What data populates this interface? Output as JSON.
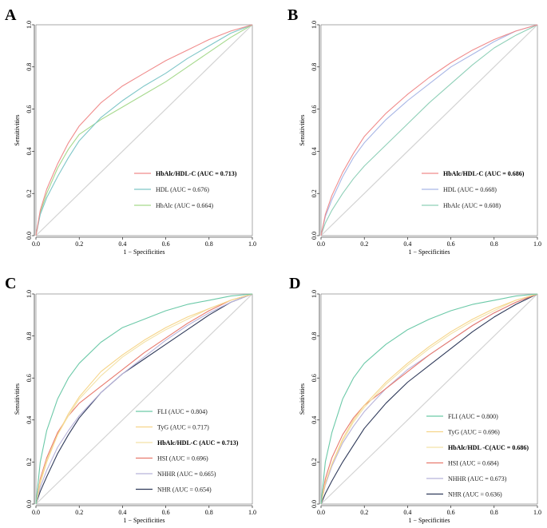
{
  "figure": {
    "type": "roc_panels"
  },
  "chart_data": [
    {
      "panel": "A",
      "type": "line",
      "xlabel": "1 − Specificities",
      "ylabel": "Sensitivities",
      "xlim": [
        0.0,
        1.0
      ],
      "ylim": [
        0.0,
        1.0
      ],
      "ticks": [
        "0.0",
        "0.2",
        "0.4",
        "0.6",
        "0.8",
        "1.0"
      ],
      "legend_position": "bottom-right",
      "series": [
        {
          "name": "HbAlc/HDL-C (AUC = 0.713)",
          "color": "#f08c8c",
          "bold": true,
          "x": [
            0,
            0.02,
            0.05,
            0.1,
            0.15,
            0.2,
            0.3,
            0.4,
            0.5,
            0.6,
            0.7,
            0.8,
            0.9,
            1.0
          ],
          "y": [
            0,
            0.12,
            0.22,
            0.34,
            0.44,
            0.52,
            0.63,
            0.71,
            0.77,
            0.83,
            0.88,
            0.93,
            0.97,
            1.0
          ]
        },
        {
          "name": "HDL (AUC = 0.676)",
          "color": "#7fc6c8",
          "bold": false,
          "x": [
            0,
            0.02,
            0.05,
            0.1,
            0.15,
            0.2,
            0.3,
            0.4,
            0.5,
            0.6,
            0.7,
            0.8,
            0.9,
            1.0
          ],
          "y": [
            0,
            0.1,
            0.18,
            0.28,
            0.37,
            0.45,
            0.56,
            0.64,
            0.71,
            0.77,
            0.84,
            0.9,
            0.96,
            1.0
          ]
        },
        {
          "name": "HbAlc (AUC = 0.664)",
          "color": "#a6d98c",
          "bold": false,
          "x": [
            0,
            0.02,
            0.05,
            0.1,
            0.15,
            0.2,
            0.3,
            0.4,
            0.5,
            0.6,
            0.7,
            0.8,
            0.9,
            1.0
          ],
          "y": [
            0,
            0.11,
            0.2,
            0.32,
            0.41,
            0.48,
            0.55,
            0.61,
            0.67,
            0.73,
            0.8,
            0.87,
            0.94,
            1.0
          ]
        }
      ]
    },
    {
      "panel": "B",
      "type": "line",
      "xlabel": "1 − Specificities",
      "ylabel": "Sensitivities",
      "xlim": [
        0.0,
        1.0
      ],
      "ylim": [
        0.0,
        1.0
      ],
      "ticks": [
        "0.0",
        "0.2",
        "0.4",
        "0.6",
        "0.8",
        "1.0"
      ],
      "legend_position": "bottom-right",
      "series": [
        {
          "name": "HbAlc/HDL-C (AUC = 0.686)",
          "color": "#f08c8c",
          "bold": true,
          "x": [
            0,
            0.02,
            0.05,
            0.1,
            0.15,
            0.2,
            0.3,
            0.4,
            0.5,
            0.6,
            0.7,
            0.8,
            0.9,
            1.0
          ],
          "y": [
            0,
            0.1,
            0.19,
            0.3,
            0.39,
            0.47,
            0.58,
            0.67,
            0.75,
            0.82,
            0.88,
            0.93,
            0.97,
            1.0
          ]
        },
        {
          "name": "HDL (AUC = 0.668)",
          "color": "#a9b7e6",
          "bold": false,
          "x": [
            0,
            0.02,
            0.05,
            0.1,
            0.15,
            0.2,
            0.3,
            0.4,
            0.5,
            0.6,
            0.7,
            0.8,
            0.9,
            1.0
          ],
          "y": [
            0,
            0.09,
            0.17,
            0.28,
            0.37,
            0.44,
            0.55,
            0.64,
            0.72,
            0.8,
            0.86,
            0.92,
            0.97,
            1.0
          ]
        },
        {
          "name": "HbAlc (AUC = 0.608)",
          "color": "#8fd0b8",
          "bold": false,
          "x": [
            0,
            0.02,
            0.05,
            0.1,
            0.15,
            0.2,
            0.3,
            0.4,
            0.5,
            0.6,
            0.7,
            0.8,
            0.9,
            1.0
          ],
          "y": [
            0,
            0.06,
            0.12,
            0.2,
            0.27,
            0.33,
            0.43,
            0.53,
            0.63,
            0.72,
            0.81,
            0.89,
            0.95,
            1.0
          ]
        }
      ]
    },
    {
      "panel": "C",
      "type": "line",
      "xlabel": "1 − Specificities",
      "ylabel": "Sensitivities",
      "xlim": [
        0.0,
        1.0
      ],
      "ylim": [
        0.0,
        1.0
      ],
      "ticks": [
        "0.0",
        "0.2",
        "0.4",
        "0.6",
        "0.8",
        "1.0"
      ],
      "legend_position": "bottom-right",
      "series": [
        {
          "name": "FLI (AUC = 0.804)",
          "color": "#6cc9a8",
          "bold": false,
          "x": [
            0,
            0.02,
            0.05,
            0.1,
            0.15,
            0.2,
            0.3,
            0.4,
            0.5,
            0.6,
            0.7,
            0.8,
            0.9,
            1.0
          ],
          "y": [
            0,
            0.2,
            0.35,
            0.5,
            0.6,
            0.67,
            0.77,
            0.84,
            0.88,
            0.92,
            0.95,
            0.97,
            0.99,
            1.0
          ]
        },
        {
          "name": "TyG (AUC = 0.717)",
          "color": "#f6d58a",
          "bold": false,
          "x": [
            0,
            0.02,
            0.05,
            0.1,
            0.15,
            0.2,
            0.3,
            0.4,
            0.5,
            0.6,
            0.7,
            0.8,
            0.9,
            1.0
          ],
          "y": [
            0,
            0.1,
            0.2,
            0.33,
            0.43,
            0.51,
            0.63,
            0.71,
            0.78,
            0.84,
            0.89,
            0.93,
            0.97,
            1.0
          ]
        },
        {
          "name": "HbAlc/HDL-C (AUC = 0.713)",
          "color": "#f3e2a8",
          "bold": true,
          "x": [
            0,
            0.02,
            0.05,
            0.1,
            0.15,
            0.2,
            0.3,
            0.4,
            0.5,
            0.6,
            0.7,
            0.8,
            0.9,
            1.0
          ],
          "y": [
            0,
            0.11,
            0.21,
            0.33,
            0.42,
            0.5,
            0.61,
            0.7,
            0.77,
            0.83,
            0.88,
            0.93,
            0.97,
            1.0
          ]
        },
        {
          "name": "HSI (AUC = 0.696)",
          "color": "#e87a6e",
          "bold": false,
          "x": [
            0,
            0.02,
            0.05,
            0.1,
            0.15,
            0.2,
            0.3,
            0.4,
            0.5,
            0.6,
            0.7,
            0.8,
            0.9,
            1.0
          ],
          "y": [
            0,
            0.12,
            0.22,
            0.34,
            0.42,
            0.48,
            0.56,
            0.64,
            0.72,
            0.79,
            0.86,
            0.92,
            0.97,
            1.0
          ]
        },
        {
          "name": "NHHR (AUC = 0.665)",
          "color": "#b8b3da",
          "bold": false,
          "x": [
            0,
            0.02,
            0.05,
            0.1,
            0.15,
            0.2,
            0.3,
            0.4,
            0.5,
            0.6,
            0.7,
            0.8,
            0.9,
            1.0
          ],
          "y": [
            0,
            0.08,
            0.16,
            0.27,
            0.35,
            0.42,
            0.53,
            0.62,
            0.7,
            0.78,
            0.85,
            0.91,
            0.96,
            1.0
          ]
        },
        {
          "name": "NHR (AUC = 0.654)",
          "color": "#2f3a5a",
          "bold": false,
          "x": [
            0,
            0.02,
            0.05,
            0.1,
            0.15,
            0.2,
            0.3,
            0.4,
            0.5,
            0.6,
            0.7,
            0.8,
            0.9,
            1.0
          ],
          "y": [
            0,
            0.06,
            0.13,
            0.24,
            0.33,
            0.41,
            0.53,
            0.62,
            0.69,
            0.76,
            0.83,
            0.9,
            0.96,
            1.0
          ]
        }
      ]
    },
    {
      "panel": "D",
      "type": "line",
      "xlabel": "1 − Specificities",
      "ylabel": "Sensitivities",
      "xlim": [
        0.0,
        1.0
      ],
      "ylim": [
        0.0,
        1.0
      ],
      "ticks": [
        "0.0",
        "0.2",
        "0.4",
        "0.6",
        "0.8",
        "1.0"
      ],
      "legend_position": "bottom-right",
      "series": [
        {
          "name": "FLI (AUC = 0.800)",
          "color": "#6cc9a8",
          "bold": false,
          "x": [
            0,
            0.02,
            0.05,
            0.1,
            0.15,
            0.2,
            0.3,
            0.4,
            0.5,
            0.6,
            0.7,
            0.8,
            0.9,
            1.0
          ],
          "y": [
            0,
            0.2,
            0.34,
            0.5,
            0.6,
            0.67,
            0.76,
            0.83,
            0.88,
            0.92,
            0.95,
            0.97,
            0.99,
            1.0
          ]
        },
        {
          "name": "TyG (AUC = 0.696)",
          "color": "#f6d58a",
          "bold": false,
          "x": [
            0,
            0.02,
            0.05,
            0.1,
            0.15,
            0.2,
            0.3,
            0.4,
            0.5,
            0.6,
            0.7,
            0.8,
            0.9,
            1.0
          ],
          "y": [
            0,
            0.1,
            0.19,
            0.31,
            0.4,
            0.47,
            0.58,
            0.67,
            0.75,
            0.82,
            0.88,
            0.93,
            0.97,
            1.0
          ]
        },
        {
          "name": "HbAlc/HDL -C(AUC = 0.686)",
          "color": "#f3e2a8",
          "bold": true,
          "x": [
            0,
            0.02,
            0.05,
            0.1,
            0.15,
            0.2,
            0.3,
            0.4,
            0.5,
            0.6,
            0.7,
            0.8,
            0.9,
            1.0
          ],
          "y": [
            0,
            0.1,
            0.19,
            0.3,
            0.39,
            0.46,
            0.57,
            0.66,
            0.74,
            0.81,
            0.87,
            0.92,
            0.97,
            1.0
          ]
        },
        {
          "name": "HSI (AUC = 0.684)",
          "color": "#e87a6e",
          "bold": false,
          "x": [
            0,
            0.02,
            0.05,
            0.1,
            0.15,
            0.2,
            0.3,
            0.4,
            0.5,
            0.6,
            0.7,
            0.8,
            0.9,
            1.0
          ],
          "y": [
            0,
            0.12,
            0.22,
            0.33,
            0.41,
            0.47,
            0.55,
            0.63,
            0.71,
            0.78,
            0.85,
            0.91,
            0.96,
            1.0
          ]
        },
        {
          "name": "NHHR (AUC = 0.673)",
          "color": "#b8b3da",
          "bold": false,
          "x": [
            0,
            0.02,
            0.05,
            0.1,
            0.15,
            0.2,
            0.3,
            0.4,
            0.5,
            0.6,
            0.7,
            0.8,
            0.9,
            1.0
          ],
          "y": [
            0,
            0.09,
            0.18,
            0.29,
            0.37,
            0.44,
            0.55,
            0.64,
            0.71,
            0.78,
            0.85,
            0.91,
            0.96,
            1.0
          ]
        },
        {
          "name": "NHR (AUC = 0.636)",
          "color": "#2f3a5a",
          "bold": false,
          "x": [
            0,
            0.02,
            0.05,
            0.1,
            0.15,
            0.2,
            0.3,
            0.4,
            0.5,
            0.6,
            0.7,
            0.8,
            0.9,
            1.0
          ],
          "y": [
            0,
            0.05,
            0.11,
            0.2,
            0.28,
            0.36,
            0.48,
            0.58,
            0.66,
            0.74,
            0.82,
            0.89,
            0.95,
            1.0
          ]
        }
      ]
    }
  ]
}
